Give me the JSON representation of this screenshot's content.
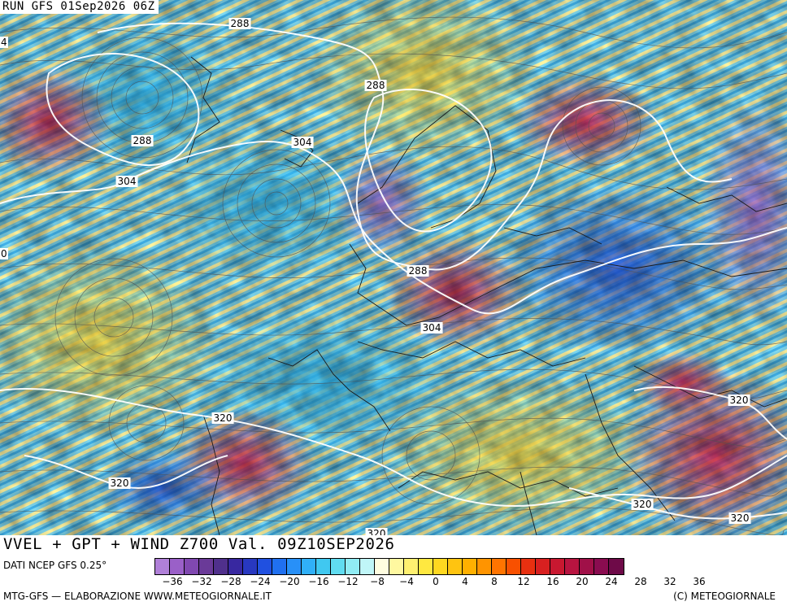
{
  "header": {
    "run_label": "RUN GFS 01Sep2026 06Z"
  },
  "map": {
    "icon": "weather-map-icon",
    "contour_labels": [
      {
        "text": "288",
        "name": "contour-label-288-north"
      },
      {
        "text": "288",
        "name": "contour-label-288-greenland"
      },
      {
        "text": "288",
        "name": "contour-label-288-west-low"
      },
      {
        "text": "304",
        "name": "contour-label-304-iceland"
      },
      {
        "text": "304",
        "name": "contour-label-304-atlantic"
      },
      {
        "text": "288",
        "name": "contour-label-288-scandinavia"
      },
      {
        "text": "304",
        "name": "contour-label-304-central-europe"
      },
      {
        "text": "320",
        "name": "contour-label-320-atlantic-south"
      },
      {
        "text": "320",
        "name": "contour-label-320-azores"
      },
      {
        "text": "320",
        "name": "contour-label-320-middle-east"
      },
      {
        "text": "320",
        "name": "contour-label-320-africa"
      },
      {
        "text": "320",
        "name": "contour-label-320-east-africa"
      },
      {
        "text": "320",
        "name": "contour-label-320-south"
      }
    ],
    "edge_labels": [
      {
        "text": "4",
        "name": "edge-label-left-top"
      },
      {
        "text": "0",
        "name": "edge-label-left-mid"
      }
    ]
  },
  "footer": {
    "title": "VVEL + GPT + WIND Z700 Val. 09Z10SEP2026",
    "source": "DATI NCEP GFS 0.25°",
    "credit_left": "MTG-GFS — ELABORAZIONE WWW.METEOGIORNALE.IT",
    "credit_right": "(C) METEOGIORNALE"
  },
  "legend": {
    "colors": [
      "#b080d8",
      "#9a60c8",
      "#8048b0",
      "#6a3a98",
      "#50308c",
      "#3828a0",
      "#2838c0",
      "#2050e0",
      "#2070f0",
      "#2890f8",
      "#30b0f8",
      "#40c8f0",
      "#60dcf0",
      "#90ecf4",
      "#c0f6f8",
      "#fffde0",
      "#fff8a0",
      "#fff070",
      "#ffe840",
      "#ffd820",
      "#ffc410",
      "#ffb000",
      "#ff9400",
      "#ff7400",
      "#f85000",
      "#e83010",
      "#d82020",
      "#c81830",
      "#b81440",
      "#a01048",
      "#8a0c50",
      "#6e0a48"
    ],
    "ticks": [
      "−36",
      "−32",
      "−28",
      "−24",
      "−20",
      "−16",
      "−12",
      "−8",
      "−4",
      "0",
      "4",
      "8",
      "12",
      "16",
      "20",
      "24",
      "28",
      "32",
      "36"
    ]
  }
}
